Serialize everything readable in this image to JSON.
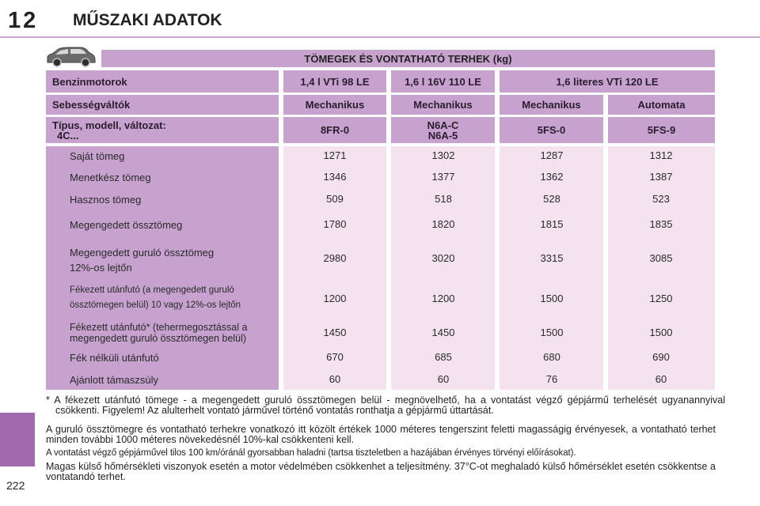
{
  "header": {
    "chapter_number": "12",
    "chapter_title": "MŰSZAKI ADATOK"
  },
  "page_number": "222",
  "table": {
    "title": "TÖMEGEK ÉS VONTATHATÓ TERHEK (kg)",
    "engines_label": "Benzinmotorok",
    "engines": [
      "1,4 l VTi 98 LE",
      "1,6 l 16V 110 LE",
      "1,6 literes VTi 120 LE"
    ],
    "gearbox_label": "Sebességváltók",
    "gearboxes": [
      "Mechanikus",
      "Mechanikus",
      "Mechanikus",
      "Automata"
    ],
    "type_label_1": "Típus, modell, változat:",
    "type_label_2": "4C...",
    "types": [
      "8FR-0",
      "N6A-C",
      "5FS-0",
      "5FS-9"
    ],
    "type_2_line2": "N6A-5",
    "dash": "-",
    "rows": [
      {
        "label": "Saját tömeg",
        "values": [
          "1271",
          "1302",
          "1287",
          "1312"
        ]
      },
      {
        "label": "Menetkész tömeg",
        "values": [
          "1346",
          "1377",
          "1362",
          "1387"
        ]
      },
      {
        "label": "Hasznos tömeg",
        "values": [
          "509",
          "518",
          "528",
          "523"
        ]
      },
      {
        "label": "Megengedett össztömeg",
        "values": [
          "1780",
          "1820",
          "1815",
          "1835"
        ]
      },
      {
        "label": "Megengedett guruló össztömeg",
        "label2": "12%-os lejtőn",
        "values": [
          "2980",
          "3020",
          "3315",
          "3085"
        ]
      },
      {
        "label": "Fékezett utánfutó (a megengedett guruló",
        "label2": "össztömegen belül) 10 vagy 12%-os lejtőn",
        "values": [
          "1200",
          "1200",
          "1500",
          "1250"
        ]
      },
      {
        "label": "Fékezett utánfutó* (tehermegosztással a",
        "label2": "megengedett guruló össztömegen belül)",
        "values": [
          "1450",
          "1450",
          "1500",
          "1500"
        ]
      },
      {
        "label": "Fék nélküli utánfutó",
        "values": [
          "670",
          "685",
          "680",
          "690"
        ]
      },
      {
        "label": "Ajánlott támaszsúly",
        "values": [
          "60",
          "60",
          "76",
          "60"
        ]
      }
    ]
  },
  "notes": {
    "footnote": "* A fékezett utánfutó tömege - a megengedett guruló össztömegen belül - megnövelhető, ha a vontatást végző gépjármű terhelését ugyanannyival csökkenti. Figyelem! Az alulterhelt vontató járművel történő vontatás ronthatja a gépjármű úttartását.",
    "altitude": "A guruló össztömegre és vontatható terhekre vonatkozó itt közölt értékek 1000 méteres tengerszint feletti magasságig érvényesek, a vontatható terhet minden további 1000 méteres növekedésnél 10%-kal csökkenteni kell.",
    "speed": "A vontatást végző gépjárművel tilos 100 km/óránál gyorsabban haladni (tartsa tiszteletben a hazájában érvényes törvényi előírásokat).",
    "temperature": "Magas külső hőmérsékleti viszonyok esetén a motor védelmében csökkenhet a teljesítmény. 37°C-ot meghaladó külső hőmérséklet esetén csökkentse a vontatandó terhet."
  },
  "colors": {
    "header_bg": "#c7a2cf",
    "data_bg": "#f5e2ef",
    "accent": "#a069ae"
  },
  "icons": [
    "car-icon"
  ]
}
